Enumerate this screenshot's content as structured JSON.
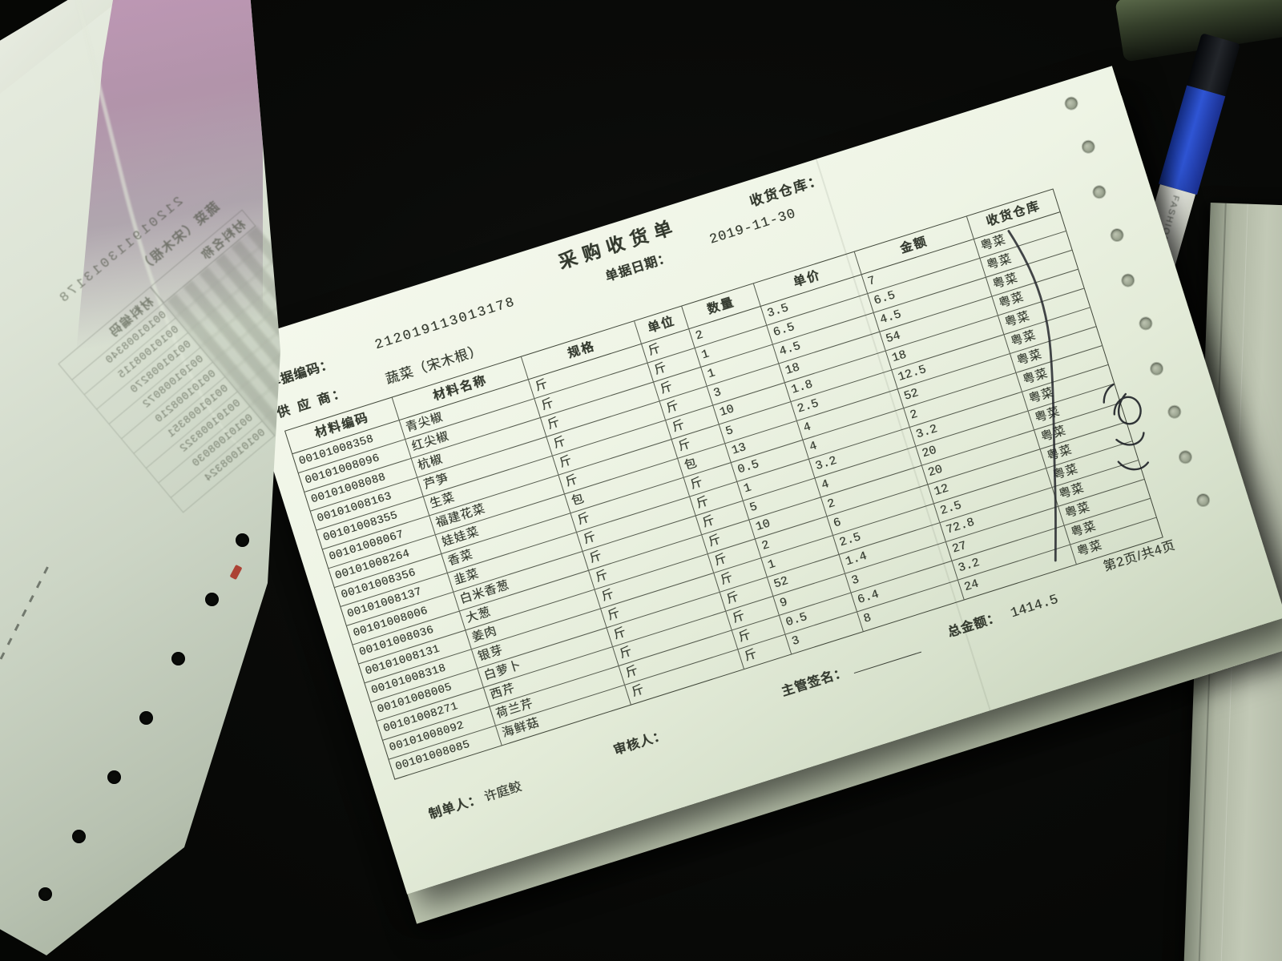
{
  "form": {
    "title": "采购收货单",
    "warehouse_field_label": "收货仓库：",
    "warehouse_field_value": "",
    "doc_code_label": "单据编码：",
    "doc_code": "212019113013178",
    "doc_date_label": "单据日期：",
    "doc_date": "2019-11-30",
    "supplier_label": "供 应 商：",
    "supplier": "蔬菜（宋木根）",
    "header": [
      {
        "code": "材料编码",
        "name": "材料名称",
        "spec": "规格",
        "unit": "单位",
        "qty": "数量",
        "price": "单价",
        "amount": "金额",
        "warehouse": "收货仓库"
      }
    ],
    "rows": [
      {
        "code": "00101008358",
        "name": "青尖椒",
        "spec": "斤",
        "unit": "斤",
        "qty": "2",
        "price": "3.5",
        "amount": "7",
        "warehouse": "粤菜"
      },
      {
        "code": "00101008096",
        "name": "红尖椒",
        "spec": "斤",
        "unit": "斤",
        "qty": "1",
        "price": "6.5",
        "amount": "6.5",
        "warehouse": "粤菜"
      },
      {
        "code": "00101008088",
        "name": "杭椒",
        "spec": "斤",
        "unit": "斤",
        "qty": "1",
        "price": "4.5",
        "amount": "4.5",
        "warehouse": "粤菜"
      },
      {
        "code": "00101008163",
        "name": "芦笋",
        "spec": "斤",
        "unit": "斤",
        "qty": "3",
        "price": "18",
        "amount": "54",
        "warehouse": "粤菜"
      },
      {
        "code": "00101008355",
        "name": "生菜",
        "spec": "斤",
        "unit": "斤",
        "qty": "10",
        "price": "1.8",
        "amount": "18",
        "warehouse": "粤菜"
      },
      {
        "code": "00101008067",
        "name": "福建花菜",
        "spec": "斤",
        "unit": "斤",
        "qty": "5",
        "price": "2.5",
        "amount": "12.5",
        "warehouse": "粤菜"
      },
      {
        "code": "00101008264",
        "name": "娃娃菜",
        "spec": "包",
        "unit": "包",
        "qty": "13",
        "price": "4",
        "amount": "52",
        "warehouse": "粤菜"
      },
      {
        "code": "00101008356",
        "name": "香菜",
        "spec": "斤",
        "unit": "斤",
        "qty": "0.5",
        "price": "4",
        "amount": "2",
        "warehouse": "粤菜"
      },
      {
        "code": "00101008137",
        "name": "韭菜",
        "spec": "斤",
        "unit": "斤",
        "qty": "1",
        "price": "3.2",
        "amount": "3.2",
        "warehouse": "粤菜"
      },
      {
        "code": "00101008006",
        "name": "白米香葱",
        "spec": "斤",
        "unit": "斤",
        "qty": "5",
        "price": "4",
        "amount": "20",
        "warehouse": "粤菜"
      },
      {
        "code": "00101008036",
        "name": "大葱",
        "spec": "斤",
        "unit": "斤",
        "qty": "10",
        "price": "2",
        "amount": "20",
        "warehouse": "粤菜"
      },
      {
        "code": "00101008131",
        "name": "姜肉",
        "spec": "斤",
        "unit": "斤",
        "qty": "2",
        "price": "6",
        "amount": "12",
        "warehouse": "粤菜"
      },
      {
        "code": "00101008318",
        "name": "银芽",
        "spec": "斤",
        "unit": "斤",
        "qty": "1",
        "price": "2.5",
        "amount": "2.5",
        "warehouse": "粤菜"
      },
      {
        "code": "00101008005",
        "name": "白萝卜",
        "spec": "斤",
        "unit": "斤",
        "qty": "52",
        "price": "1.4",
        "amount": "72.8",
        "warehouse": "粤菜"
      },
      {
        "code": "00101008271",
        "name": "西芹",
        "spec": "斤",
        "unit": "斤",
        "qty": "9",
        "price": "3",
        "amount": "27",
        "warehouse": "粤菜"
      },
      {
        "code": "00101008092",
        "name": "荷兰芹",
        "spec": "斤",
        "unit": "斤",
        "qty": "0.5",
        "price": "6.4",
        "amount": "3.2",
        "warehouse": "粤菜"
      },
      {
        "code": "00101008085",
        "name": "海鲜菇",
        "spec": "斤",
        "unit": "斤",
        "qty": "3",
        "price": "8",
        "amount": "24",
        "warehouse": "粤菜"
      }
    ],
    "footer": {
      "maker_label": "制单人：",
      "maker": "许庭鲛",
      "auditor_label": "审核人：",
      "supervisor_label": "主管签名：",
      "total_label": "总金额：",
      "total": "1414.5",
      "page_info": "第2页/共4页"
    }
  },
  "back_page": {
    "doc_code": "212019113013178",
    "supplier_line": "蔬菜（宋木根）",
    "col_name": "材料名称",
    "col_code": "材料编码",
    "rows": [
      {
        "smudge": "",
        "bcode": "00101008340"
      },
      {
        "smudge": "",
        "bcode": "00101008115"
      },
      {
        "smudge": "",
        "bcode": "00101008270"
      },
      {
        "smudge": "",
        "bcode": "00101008072"
      },
      {
        "smudge": "",
        "bcode": "00101008210"
      },
      {
        "smudge": "",
        "bcode": "00101008351"
      },
      {
        "smudge": "",
        "bcode": "00101008322"
      },
      {
        "smudge": "",
        "bcode": "00101008030"
      },
      {
        "smudge": "",
        "bcode": "00101008324"
      }
    ]
  },
  "pen": {
    "label": "FASHION"
  },
  "colors": {
    "paper": "#eef3e7",
    "ink": "#343a2f",
    "handwriting": "#23262b",
    "pen_blue": "#2f55d4",
    "red_mark": "#a83326",
    "background": "#0a0b09"
  }
}
